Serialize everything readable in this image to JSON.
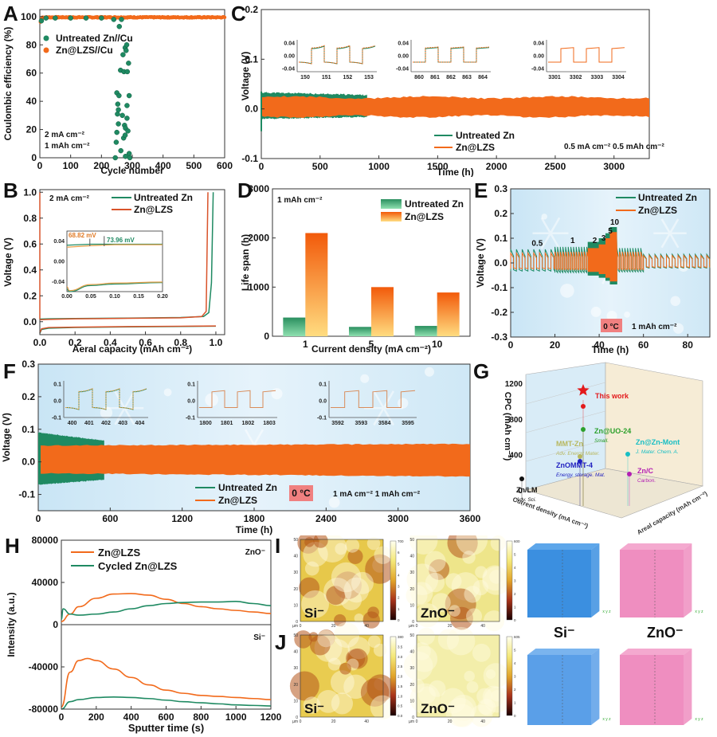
{
  "colors": {
    "untreated": "#1f8a62",
    "lzs": "#f26a1b",
    "lzs_b": "#d9532a",
    "cycled": "#1f8a62",
    "badge": "#f08080",
    "snow_bg": "#d5ebf6",
    "si_cube": "#3b8fe0",
    "zno_cube": "#ef8ec0"
  },
  "panel_labels": [
    "A",
    "B",
    "C",
    "D",
    "E",
    "F",
    "G",
    "H",
    "I",
    "J"
  ],
  "chart_data": [
    {
      "id": "A",
      "type": "scatter",
      "title": "",
      "xlabel": "Cycle number",
      "ylabel": "Coulombic efficiency (%)",
      "xlim": [
        0,
        600
      ],
      "ylim": [
        0,
        105
      ],
      "xticks": [
        0,
        100,
        200,
        300,
        400,
        500,
        600
      ],
      "yticks": [
        0,
        20,
        40,
        60,
        80,
        100
      ],
      "legend": [
        "Untreated Zn//Cu",
        "Zn@LZS//Cu"
      ],
      "legend_position": "top-left",
      "annotations": [
        "2 mA cm⁻²",
        "1 mAh cm⁻²"
      ],
      "series": [
        {
          "name": "Untreated Zn//Cu",
          "points": [
            [
              5,
              97
            ],
            [
              20,
              99
            ],
            [
              50,
              99
            ],
            [
              100,
              99
            ],
            [
              150,
              99
            ],
            [
              200,
              99
            ],
            [
              240,
              98
            ],
            [
              245,
              0
            ],
            [
              248,
              11
            ],
            [
              250,
              46
            ],
            [
              250,
              18
            ],
            [
              252,
              31
            ],
            [
              253,
              38
            ],
            [
              255,
              34
            ],
            [
              255,
              24
            ],
            [
              257,
              44
            ],
            [
              258,
              93
            ],
            [
              262,
              62
            ],
            [
              263,
              5
            ],
            [
              265,
              98
            ],
            [
              268,
              30
            ],
            [
              270,
              73
            ],
            [
              272,
              14
            ],
            [
              273,
              61
            ],
            [
              275,
              23
            ],
            [
              277,
              78
            ],
            [
              277,
              16
            ],
            [
              278,
              21
            ],
            [
              278,
              1
            ],
            [
              280,
              76
            ],
            [
              282,
              80
            ],
            [
              283,
              37
            ],
            [
              283,
              28
            ],
            [
              284,
              61
            ],
            [
              286,
              19
            ],
            [
              288,
              67
            ],
            [
              290,
              44
            ],
            [
              290,
              3
            ],
            [
              292,
              0
            ]
          ]
        },
        {
          "name": "Zn@LZS//Cu",
          "range_x": [
            0,
            600
          ],
          "mean_y": 99.5,
          "first_y": 95
        }
      ]
    },
    {
      "id": "B",
      "type": "line",
      "xlabel": "Aeral capacity (mAh cm⁻²)",
      "ylabel": "Voltage (V)",
      "xlim": [
        0,
        1.05
      ],
      "ylim": [
        -0.1,
        1.02
      ],
      "xticks": [
        0.0,
        0.2,
        0.4,
        0.6,
        0.8,
        1.0
      ],
      "yticks": [
        0.0,
        0.2,
        0.4,
        0.6,
        0.8,
        1.0
      ],
      "legend": [
        "Untreated Zn",
        "Zn@LZS"
      ],
      "legend_position": "top-right",
      "annotations": [
        "2 mA cm⁻²"
      ],
      "series": [
        {
          "name": "Untreated Zn",
          "x": [
            0,
            0.05,
            0.2,
            0.5,
            0.8,
            0.93,
            0.96,
            0.975,
            0.985
          ],
          "y": [
            0.02,
            0.022,
            0.025,
            0.028,
            0.032,
            0.04,
            0.07,
            0.3,
            1.0
          ]
        },
        {
          "name": "Zn@LZS",
          "x": [
            0,
            0.05,
            0.2,
            0.5,
            0.8,
            0.92,
            0.945,
            0.955
          ],
          "y": [
            0.015,
            0.018,
            0.022,
            0.026,
            0.03,
            0.04,
            0.08,
            1.0
          ]
        },
        {
          "name": "Untreated Zn strip",
          "x": [
            0,
            0.01,
            0.05,
            0.2,
            0.5,
            0.8,
            1.0
          ],
          "y": [
            -0.09,
            -0.06,
            -0.05,
            -0.045,
            -0.04,
            -0.037,
            -0.035
          ]
        },
        {
          "name": "Zn@LZS strip",
          "x": [
            0,
            0.01,
            0.05,
            0.2,
            0.5,
            0.8,
            1.0
          ],
          "y": [
            -0.085,
            -0.055,
            -0.045,
            -0.042,
            -0.038,
            -0.035,
            -0.033
          ]
        }
      ],
      "inset": {
        "xlim": [
          0,
          0.2
        ],
        "ylim": [
          -0.06,
          0.06
        ],
        "xticks": [
          0.0,
          0.05,
          0.1,
          0.15,
          0.2
        ],
        "yticks": [
          -0.04,
          0.0,
          0.04
        ],
        "annotations": [
          {
            "text": "68.82 mV",
            "series": "Zn@LZS"
          },
          {
            "text": "73.96 mV",
            "series": "Untreated Zn"
          }
        ]
      }
    },
    {
      "id": "C",
      "type": "line",
      "xlabel": "Time (h)",
      "ylabel": "Voltage (V)",
      "xlim": [
        0,
        3300
      ],
      "ylim": [
        -0.1,
        0.2
      ],
      "xticks": [
        0,
        500,
        1000,
        1500,
        2000,
        2500,
        3000
      ],
      "yticks": [
        -0.1,
        0.0,
        0.1,
        0.2
      ],
      "legend": [
        "Untreated Zn",
        "Zn@LZS"
      ],
      "legend_position": "bottom-center",
      "annotations": [
        "0.5 mA cm⁻²  0.5 mAh cm⁻²"
      ],
      "series": [
        {
          "name": "Untreated Zn",
          "range_x": [
            0,
            900
          ],
          "upper": 0.033,
          "lower": -0.02
        },
        {
          "name": "Zn@LZS",
          "range_x": [
            0,
            3300
          ],
          "upper": 0.023,
          "lower": -0.015
        }
      ],
      "insets": [
        {
          "xticks": [
            150,
            151,
            152,
            153
          ],
          "yticks": [
            -0.04,
            0.0,
            0.04
          ]
        },
        {
          "xticks": [
            860,
            861,
            862,
            863,
            864
          ],
          "yticks": [
            -0.04,
            0.0,
            0.04
          ]
        },
        {
          "xticks": [
            3301,
            3302,
            3303,
            3304
          ],
          "yticks": [
            -0.04,
            0.0,
            0.04
          ]
        }
      ]
    },
    {
      "id": "D",
      "type": "bar",
      "xlabel": "Current density (mA cm⁻²)",
      "ylabel": "Life span (h)",
      "ylim": [
        0,
        3000
      ],
      "yticks": [
        0,
        1000,
        2000,
        3000
      ],
      "categories": [
        "1",
        "5",
        "10"
      ],
      "legend": [
        "Untreated Zn",
        "Zn@LZS"
      ],
      "legend_position": "top-right",
      "annotations": [
        "1 mAh cm⁻²"
      ],
      "series": [
        {
          "name": "Untreated Zn",
          "values": [
            380,
            190,
            210
          ]
        },
        {
          "name": "Zn@LZS",
          "values": [
            2100,
            1000,
            890
          ]
        }
      ]
    },
    {
      "id": "E",
      "type": "line",
      "xlabel": "Time (h)",
      "ylabel": "Voltage (V)",
      "xlim": [
        0,
        90
      ],
      "ylim": [
        -0.3,
        0.3
      ],
      "xticks": [
        0,
        20,
        40,
        60,
        80
      ],
      "yticks": [
        -0.3,
        -0.2,
        -0.1,
        0.0,
        0.1,
        0.2,
        0.3
      ],
      "legend": [
        "Untreated Zn",
        "Zn@LZS"
      ],
      "legend_position": "top-right",
      "annotations": [
        "0 °C",
        "1 mAh cm⁻²"
      ],
      "rate_labels": [
        {
          "text": "0.5",
          "x": 12,
          "y": 0.07
        },
        {
          "text": "1",
          "x": 28,
          "y": 0.08
        },
        {
          "text": "2",
          "x": 38,
          "y": 0.08
        },
        {
          "text": "3",
          "x": 42,
          "y": 0.09
        },
        {
          "text": "5",
          "x": 45,
          "y": 0.12
        },
        {
          "text": "10",
          "x": 47,
          "y": 0.155
        }
      ],
      "segments": [
        {
          "rate": 0.5,
          "x": [
            0,
            20
          ],
          "amp_untreated": 0.055,
          "amp_lzs": 0.04
        },
        {
          "rate": 1,
          "x": [
            20,
            35
          ],
          "amp_untreated": 0.065,
          "amp_lzs": 0.045
        },
        {
          "rate": 2,
          "x": [
            35,
            40
          ],
          "amp_untreated": 0.085,
          "amp_lzs": 0.06
        },
        {
          "rate": 3,
          "x": [
            40,
            43
          ],
          "amp_untreated": 0.1,
          "amp_lzs": 0.075
        },
        {
          "rate": 5,
          "x": [
            43,
            45
          ],
          "amp_untreated": 0.12,
          "amp_lzs": 0.1
        },
        {
          "rate": 10,
          "x": [
            45,
            48
          ],
          "amp_untreated": 0.145,
          "amp_lzs": 0.125
        },
        {
          "rate": 1,
          "x": [
            48,
            60
          ],
          "amp_untreated": 0.06,
          "amp_lzs": 0.045
        },
        {
          "rate": 0.5,
          "x": [
            60,
            90
          ],
          "amp_untreated": 0.035,
          "amp_lzs": 0.03
        }
      ]
    },
    {
      "id": "F",
      "type": "line",
      "xlabel": "Time (h)",
      "ylabel": "Voltage (V)",
      "xlim": [
        0,
        3600
      ],
      "ylim": [
        -0.15,
        0.3
      ],
      "xticks": [
        0,
        600,
        1200,
        1800,
        2400,
        3000,
        3600
      ],
      "yticks": [
        -0.1,
        0.0,
        0.1,
        0.2,
        0.3
      ],
      "legend": [
        "Untreated Zn",
        "Zn@LZS"
      ],
      "legend_position": "bottom-center",
      "annotations": [
        "0 °C",
        "1 mA cm⁻²  1 mAh cm⁻²"
      ],
      "series": [
        {
          "name": "Untreated Zn",
          "range_x": [
            0,
            550
          ],
          "upper": 0.09,
          "lower": -0.07
        },
        {
          "name": "Zn@LZS",
          "range_x": [
            0,
            3600
          ],
          "upper_start": 0.05,
          "upper_end": 0.055,
          "lower_start": -0.035,
          "lower_end": -0.045
        }
      ],
      "insets": [
        {
          "xticks": [
            400,
            401,
            402,
            403,
            404
          ],
          "yticks": [
            -0.1,
            0.0,
            0.1
          ]
        },
        {
          "xticks": [
            1800,
            1801,
            1802,
            1803
          ],
          "yticks": [
            -0.1,
            0.0,
            0.1
          ]
        },
        {
          "xticks": [
            3592,
            3593,
            3584,
            3595
          ],
          "yticks": [
            -0.1,
            0.0,
            0.1
          ]
        }
      ]
    },
    {
      "id": "G",
      "type": "scatter",
      "subtype": "3d",
      "zlabel": "CPC (mAh cm⁻³)",
      "xlabel": "Current density (mA cm⁻²)",
      "ylabel": "Areal capacity (mAh cm⁻²)",
      "zticks": [
        0,
        400,
        800,
        1200
      ],
      "points": [
        {
          "label": "This work",
          "ref": "",
          "cpc": 1050,
          "color": "#e31a1c",
          "marker": "star"
        },
        {
          "label": "Zn@UO-24",
          "ref": "Small.",
          "cpc": 720,
          "color": "#2ca02c"
        },
        {
          "label": "MMT-Zn",
          "ref": "Adv. Energy Mater.",
          "cpc": 450,
          "color": "#b8b860"
        },
        {
          "label": "ZnOMMT-4",
          "ref": "Energy. storage. Mat.",
          "cpc": 420,
          "color": "#1f1fbf"
        },
        {
          "label": "Zn@Zn-Mont",
          "ref": "J. Mater. Chem. A.",
          "cpc": 480,
          "color": "#17bec4"
        },
        {
          "label": "Zn/C",
          "ref": "Carbon.",
          "cpc": 140,
          "color": "#b31fb3"
        },
        {
          "label": "Zn/LM",
          "ref": "Adv. Sci.",
          "cpc": 160,
          "color": "#111111"
        }
      ]
    },
    {
      "id": "H",
      "type": "line",
      "xlabel": "Sputter time (s)",
      "ylabel": "Intensity (a.u.)",
      "xlim": [
        0,
        1200
      ],
      "ylim": [
        -80000,
        80000
      ],
      "xticks": [
        0,
        200,
        400,
        600,
        800,
        1000,
        1200
      ],
      "yticks": [
        -80000,
        -40000,
        0,
        40000,
        80000
      ],
      "legend": [
        "Zn@LZS",
        "Cycled Zn@LZS"
      ],
      "legend_position": "top-left",
      "section_labels": [
        "ZnO⁻",
        "Si⁻"
      ],
      "series": [
        {
          "name": "Zn@LZS ZnO⁻",
          "x": [
            0,
            50,
            100,
            200,
            300,
            400,
            500,
            600,
            700,
            800,
            900,
            1000,
            1100,
            1200
          ],
          "y": [
            3000,
            10000,
            17000,
            25000,
            29000,
            29500,
            28000,
            24000,
            20000,
            17000,
            15000,
            13500,
            12000,
            10500
          ]
        },
        {
          "name": "Cycled Zn@LZS ZnO⁻",
          "x": [
            0,
            10,
            50,
            100,
            200,
            300,
            400,
            500,
            600,
            700,
            800,
            900,
            1000,
            1100,
            1200
          ],
          "y": [
            5000,
            15000,
            10000,
            9000,
            10000,
            12000,
            15000,
            18000,
            20000,
            21000,
            21500,
            21500,
            22000,
            20000,
            18000
          ]
        },
        {
          "name": "Zn@LZS Si⁻",
          "x": [
            0,
            50,
            100,
            150,
            200,
            300,
            400,
            500,
            600,
            700,
            800,
            900,
            1000,
            1100,
            1200
          ],
          "y": [
            -78000,
            -45000,
            -34000,
            -32000,
            -34000,
            -42000,
            -50000,
            -57000,
            -62000,
            -65000,
            -67000,
            -68000,
            -69000,
            -70000,
            -71000
          ]
        },
        {
          "name": "Cycled Zn@LZS Si⁻",
          "x": [
            0,
            50,
            100,
            200,
            300,
            400,
            500,
            600,
            700,
            800,
            900,
            1000,
            1100,
            1200
          ],
          "y": [
            -80000,
            -73000,
            -71000,
            -69000,
            -68500,
            -69000,
            -70000,
            -71500,
            -73000,
            -74000,
            -75000,
            -76000,
            -76500,
            -77000
          ]
        }
      ]
    },
    {
      "id": "I",
      "type": "heatmap",
      "maps": [
        {
          "label": "Si⁻",
          "axis_unit": "µm",
          "xticks": [
            0,
            20,
            40
          ],
          "yticks": [
            0,
            10,
            20,
            30,
            40,
            50
          ],
          "colorbar_max": "700",
          "colorbar_ticks": [
            "0",
            "1",
            "2",
            "3",
            "4",
            "5",
            "6",
            "700"
          ]
        },
        {
          "label": "ZnO⁻",
          "axis_unit": "µm",
          "xticks": [
            0,
            20,
            40
          ],
          "yticks": [
            0,
            10,
            20,
            30,
            40,
            50
          ],
          "colorbar_max": "600",
          "colorbar_ticks": [
            "0",
            "1",
            "2",
            "3",
            "4",
            "5",
            "600"
          ]
        }
      ],
      "cubes": [
        "Si⁻",
        "ZnO⁻"
      ]
    },
    {
      "id": "J",
      "type": "heatmap",
      "maps": [
        {
          "label": "Si⁻",
          "axis_unit": "µm",
          "xticks": [
            0,
            20,
            40
          ],
          "yticks": [
            0,
            10,
            20,
            30,
            40,
            50
          ],
          "colorbar_max": "380",
          "colorbar_ticks": [
            "0.0",
            "0.5",
            "1.0",
            "1.5",
            "2.0",
            "2.5",
            "3.0",
            "3.5",
            "380"
          ]
        },
        {
          "label": "ZnO⁻",
          "axis_unit": "µm",
          "xticks": [
            0,
            20,
            40
          ],
          "yticks": [
            0,
            10,
            20,
            30,
            40,
            50
          ],
          "colorbar_max": "605",
          "colorbar_ticks": [
            "0",
            "1",
            "2",
            "3",
            "4",
            "5",
            "605"
          ]
        }
      ],
      "cubes": [
        "Si⁻",
        "ZnO⁻"
      ]
    }
  ]
}
